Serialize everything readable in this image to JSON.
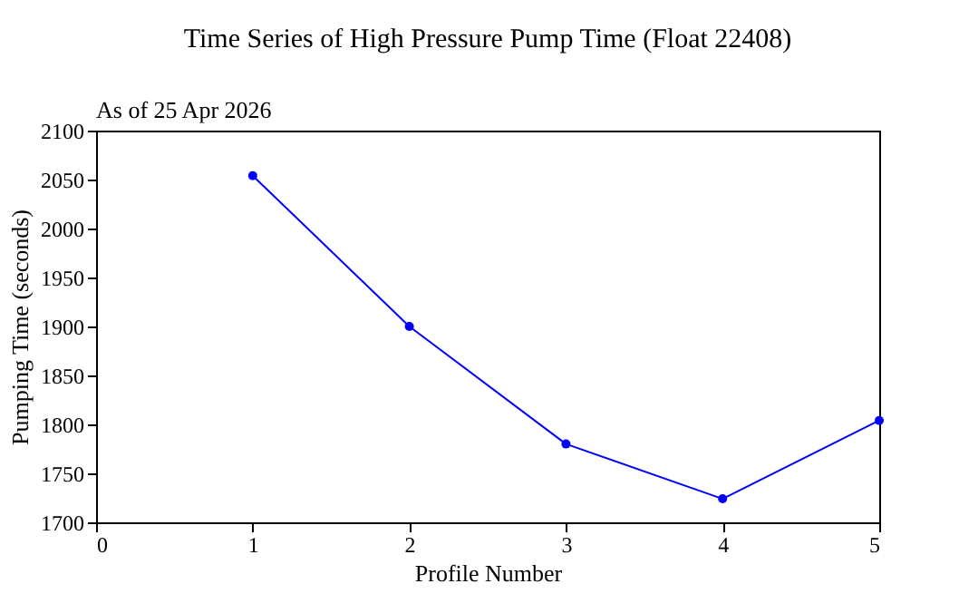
{
  "chart_data": {
    "type": "line",
    "title": "Time Series of High Pressure Pump Time (Float 22408)",
    "subtitle": "As of 25 Apr 2026",
    "xlabel": "Profile Number",
    "ylabel": "Pumping Time (seconds)",
    "x": [
      1,
      2,
      3,
      4,
      5
    ],
    "series": [
      {
        "color": "#0000ff",
        "values": [
          2054,
          1900,
          1780,
          1724,
          1804
        ]
      }
    ],
    "xlim": [
      0,
      5
    ],
    "xticks": [
      0,
      1,
      2,
      3,
      4,
      5
    ],
    "ylim": [
      1700,
      2100
    ],
    "yticks": [
      1700,
      1750,
      1800,
      1850,
      1900,
      1950,
      2000,
      2050,
      2100
    ],
    "grid": false,
    "marker": "circle",
    "line_style": "solid"
  }
}
